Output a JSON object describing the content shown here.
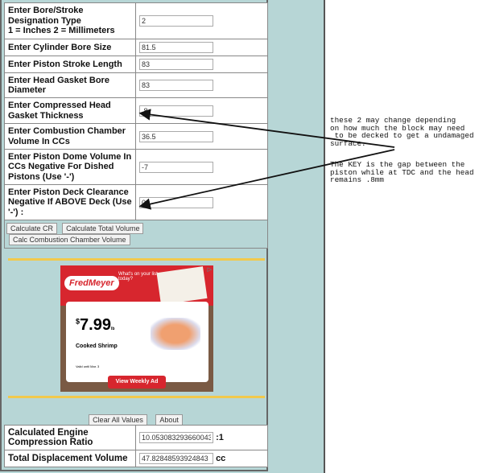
{
  "fields": [
    {
      "label": "Enter Bore/Stroke Designation Type",
      "label2": "1 = Inches 2 = Millimeters",
      "value": "2"
    },
    {
      "label": "Enter Cylinder Bore Size",
      "value": "81.5"
    },
    {
      "label": "Enter Piston Stroke Length",
      "value": "83"
    },
    {
      "label": "Enter Head Gasket Bore Diameter",
      "value": "83"
    },
    {
      "label": "Enter Compressed Head Gasket Thickness",
      "value": ".8"
    },
    {
      "label": "Enter Combustion Chamber Volume In CCs",
      "value": "36.5"
    },
    {
      "label": "Enter Piston Dome Volume In CCs Negative For Dished Pistons (Use '-')",
      "value": "-7"
    },
    {
      "label": "Enter Piston Deck Clearance Negative If ABOVE Deck (Use '-') :",
      "value": "0"
    }
  ],
  "buttons": {
    "calc_cr": "Calculate CR",
    "calc_total": "Calculate Total Volume",
    "calc_chamber": "Calc Combustion Chamber Volume",
    "clear": "Clear All Values",
    "about": "About"
  },
  "ad": {
    "brand": "FredMeyer",
    "tagline": "What's on your list today?",
    "currency": "$",
    "price": "7.99",
    "unit": "lb",
    "item": "Cooked Shrimp",
    "valid": "Valid until Mar. 3",
    "cta": "View Weekly Ad",
    "adchoices": "▷"
  },
  "results": [
    {
      "label": "Calculated Engine Compression Ratio",
      "value": "10.053083293660043",
      "unit": ":1"
    },
    {
      "label": "Total Displacement Volume",
      "value": "47.82848593924843",
      "unit": "cc"
    }
  ],
  "notes": {
    "note1": "these 2 may change depending\non how much the block may need\n to be decked to get a undamaged\nsurface.",
    "note2": "The KEY is the gap between the\npiston while at TDC and the head\nremains .8mm"
  }
}
